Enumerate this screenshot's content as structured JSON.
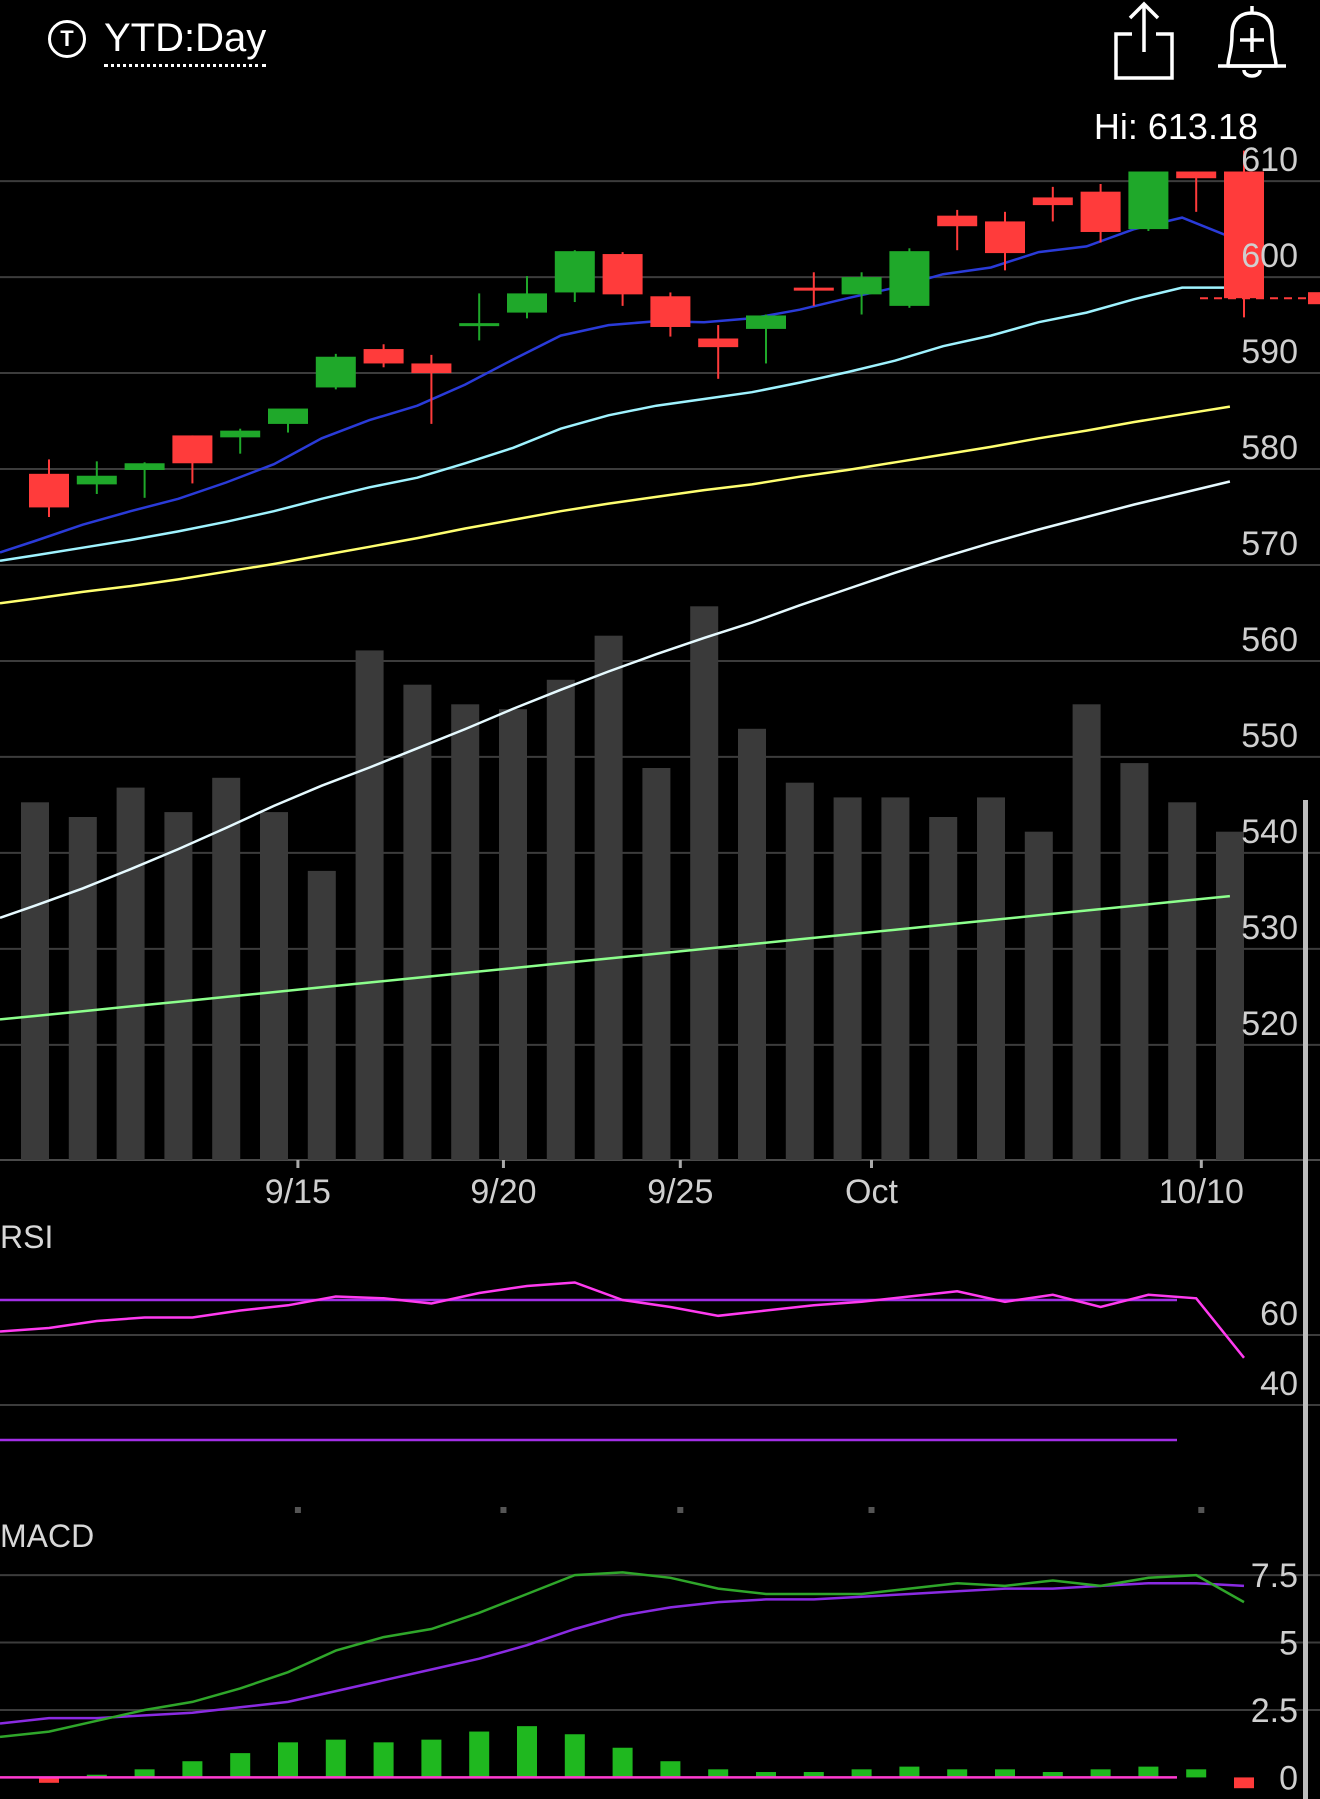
{
  "header": {
    "ticker_icon": "T",
    "range_label": "YTD:Day",
    "hi_label": "Hi: 613.18",
    "share_icon": "share-icon",
    "alert_icon": "bell-plus-icon"
  },
  "colors": {
    "up": "#1fa82a",
    "down": "#ff3b3b",
    "volume": "#3a3a3a",
    "ma1": "#2a3bd8",
    "ma2": "#9ff3ff",
    "ma3": "#ffff70",
    "ma4": "#e6faff",
    "ma5": "#8cff8c",
    "rsi": "#ff3bf0",
    "rsi_band": "#a22ee6",
    "macd": "#2fa62a",
    "macd_signal": "#8a2be2",
    "macd_hist": "#1fb81f",
    "zero_line": "#ff3bd0"
  },
  "chart_data": [
    {
      "type": "candlestick",
      "panel": "price",
      "y_ticks": [
        "610",
        "600",
        "590",
        "580",
        "570",
        "560",
        "550",
        "540",
        "530",
        "520"
      ],
      "ylim": [
        508,
        612.2
      ],
      "x_labels": [
        "9/15",
        "9/20",
        "9/25",
        "Oct",
        "10/10"
      ],
      "x_label_positions": [
        5.5,
        9.8,
        13.5,
        17.5,
        24.4
      ],
      "hi": 613.18,
      "last_price_guide": 597.8,
      "candles": [
        {
          "o": 579.5,
          "h": 581.0,
          "l": 575.0,
          "c": 576.0
        },
        {
          "o": 578.4,
          "h": 580.8,
          "l": 577.4,
          "c": 579.3
        },
        {
          "o": 579.9,
          "h": 580.7,
          "l": 577.0,
          "c": 580.6
        },
        {
          "o": 583.5,
          "h": 583.5,
          "l": 578.5,
          "c": 580.6
        },
        {
          "o": 583.3,
          "h": 584.2,
          "l": 581.6,
          "c": 584.0
        },
        {
          "o": 584.7,
          "h": 586.0,
          "l": 583.8,
          "c": 586.3
        },
        {
          "o": 588.5,
          "h": 592.0,
          "l": 588.3,
          "c": 591.7
        },
        {
          "o": 592.5,
          "h": 593.0,
          "l": 590.6,
          "c": 591.0
        },
        {
          "o": 591.0,
          "h": 591.9,
          "l": 584.7,
          "c": 590.0
        },
        {
          "o": 594.9,
          "h": 598.3,
          "l": 593.4,
          "c": 595.2
        },
        {
          "o": 596.3,
          "h": 600.1,
          "l": 595.7,
          "c": 598.3
        },
        {
          "o": 598.4,
          "h": 602.8,
          "l": 597.4,
          "c": 602.7
        },
        {
          "o": 602.4,
          "h": 602.6,
          "l": 597.0,
          "c": 598.2
        },
        {
          "o": 598.0,
          "h": 598.4,
          "l": 593.8,
          "c": 594.8
        },
        {
          "o": 593.6,
          "h": 595.0,
          "l": 589.4,
          "c": 592.7
        },
        {
          "o": 594.6,
          "h": 596.1,
          "l": 591.0,
          "c": 596.0
        },
        {
          "o": 598.9,
          "h": 600.5,
          "l": 597.0,
          "c": 598.6
        },
        {
          "o": 598.2,
          "h": 600.5,
          "l": 596.1,
          "c": 600.0
        },
        {
          "o": 597.0,
          "h": 603.0,
          "l": 596.8,
          "c": 602.7
        },
        {
          "o": 606.4,
          "h": 607.0,
          "l": 602.8,
          "c": 605.3
        },
        {
          "o": 605.8,
          "h": 606.8,
          "l": 600.7,
          "c": 602.5
        },
        {
          "o": 608.3,
          "h": 609.4,
          "l": 605.8,
          "c": 607.5
        },
        {
          "o": 608.9,
          "h": 609.7,
          "l": 603.6,
          "c": 604.7
        },
        {
          "o": 605.0,
          "h": 611.0,
          "l": 604.8,
          "c": 611.0
        },
        {
          "o": 611.0,
          "h": 611.0,
          "l": 606.8,
          "c": 610.3
        },
        {
          "o": 611.0,
          "h": 613.18,
          "l": 595.8,
          "c": 597.8
        }
      ],
      "volume": [
        0.73,
        0.7,
        0.76,
        0.71,
        0.78,
        0.71,
        0.59,
        1.04,
        0.97,
        0.93,
        0.92,
        0.98,
        1.07,
        0.8,
        1.13,
        0.88,
        0.77,
        0.74,
        0.74,
        0.7,
        0.74,
        0.67,
        0.93,
        0.81,
        0.73,
        0.67
      ],
      "moving_averages": [
        {
          "values": [
            572.5,
            574.2,
            575.6,
            576.9,
            578.6,
            580.5,
            583.2,
            585.1,
            586.6,
            588.8,
            591.4,
            593.9,
            595.0,
            595.4,
            595.3,
            595.7,
            596.6,
            597.8,
            598.9,
            600.3,
            601.0,
            602.6,
            603.2,
            605.0,
            606.2,
            604.2
          ]
        },
        {
          "values": [
            571.0,
            571.8,
            572.6,
            573.5,
            574.5,
            575.6,
            576.9,
            578.1,
            579.1,
            580.6,
            582.2,
            584.2,
            585.6,
            586.6,
            587.3,
            588.0,
            589.0,
            590.1,
            591.3,
            592.8,
            593.9,
            595.3,
            596.3,
            597.7,
            598.9,
            598.9
          ]
        },
        {
          "values": [
            566.5,
            567.2,
            567.8,
            568.5,
            569.3,
            570.1,
            571.0,
            571.9,
            572.8,
            573.8,
            574.7,
            575.6,
            576.4,
            577.1,
            577.8,
            578.4,
            579.2,
            579.9,
            580.7,
            581.5,
            582.3,
            583.2,
            584.0,
            584.9,
            585.7,
            586.5
          ]
        },
        {
          "values": [
            534.5,
            536.3,
            538.3,
            540.4,
            542.6,
            544.9,
            547.0,
            548.9,
            550.9,
            552.9,
            555.0,
            557.0,
            558.9,
            560.7,
            562.4,
            564.0,
            565.8,
            567.5,
            569.2,
            570.8,
            572.3,
            573.7,
            575.0,
            576.3,
            577.5,
            578.7
          ]
        },
        {
          "values": [
            523.0,
            523.5,
            524.0,
            524.5,
            525.0,
            525.5,
            526.0,
            526.5,
            527.0,
            527.5,
            528.0,
            528.5,
            529.0,
            529.5,
            530.0,
            530.5,
            531.0,
            531.5,
            532.0,
            532.5,
            533.0,
            533.5,
            534.0,
            534.5,
            535.0,
            535.5
          ]
        }
      ]
    },
    {
      "type": "line",
      "panel": "rsi",
      "label": "RSI",
      "y_ticks": [
        "60",
        "40"
      ],
      "ylim": [
        10,
        90
      ],
      "bands": [
        70,
        30
      ],
      "values": [
        62,
        64,
        65,
        65,
        67,
        68.5,
        71,
        70.5,
        69,
        72,
        74,
        75,
        70,
        68,
        65.5,
        67,
        68.5,
        69.5,
        71,
        72.5,
        69.5,
        71.5,
        68,
        71.5,
        70.5,
        53.5
      ]
    },
    {
      "type": "line",
      "panel": "macd",
      "label": "MACD",
      "y_ticks": [
        "7.5",
        "5",
        "2.5",
        "0"
      ],
      "ylim": [
        -0.8,
        8.8
      ],
      "macd": [
        1.7,
        2.1,
        2.5,
        2.8,
        3.3,
        3.9,
        4.7,
        5.2,
        5.5,
        6.1,
        6.8,
        7.5,
        7.6,
        7.4,
        7.0,
        6.8,
        6.8,
        6.8,
        7.0,
        7.2,
        7.1,
        7.3,
        7.1,
        7.4,
        7.5,
        6.5
      ],
      "signal": [
        2.2,
        2.2,
        2.3,
        2.4,
        2.6,
        2.8,
        3.2,
        3.6,
        4.0,
        4.4,
        4.9,
        5.5,
        6.0,
        6.3,
        6.5,
        6.6,
        6.6,
        6.7,
        6.8,
        6.9,
        7.0,
        7.0,
        7.1,
        7.2,
        7.2,
        7.1
      ],
      "histogram": [
        -0.2,
        0.1,
        0.3,
        0.6,
        0.9,
        1.3,
        1.4,
        1.3,
        1.4,
        1.7,
        1.9,
        1.6,
        1.1,
        0.6,
        0.3,
        0.2,
        0.2,
        0.3,
        0.4,
        0.3,
        0.3,
        0.2,
        0.3,
        0.4,
        0.3,
        -0.4
      ]
    }
  ]
}
